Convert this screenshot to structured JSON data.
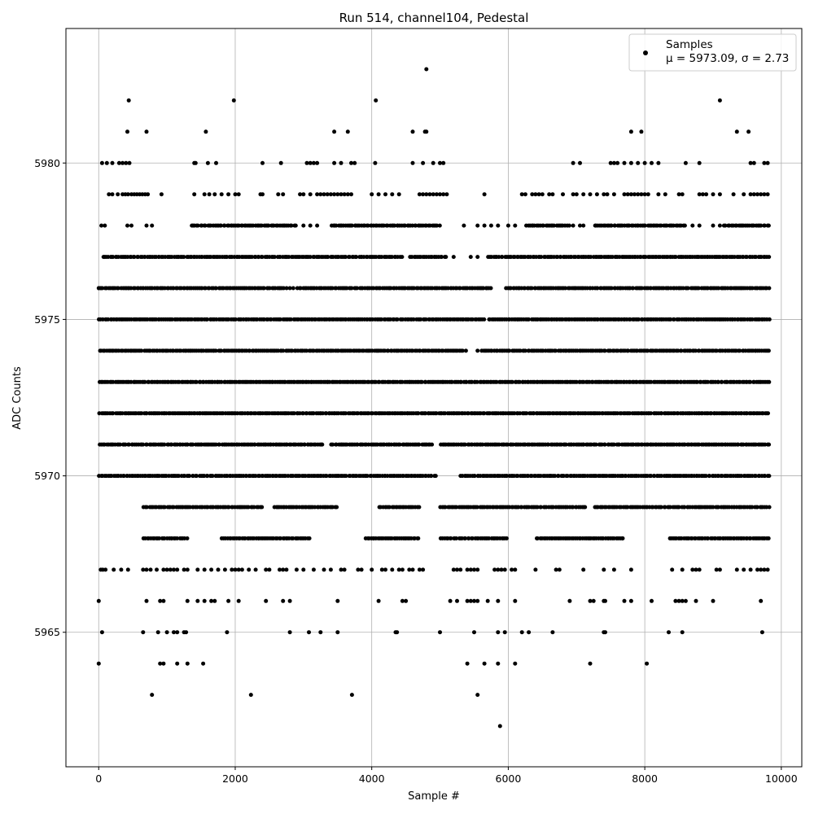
{
  "chart_data": {
    "type": "scatter",
    "title": "Run 514, channel104, Pedestal",
    "xlabel": "Sample #",
    "ylabel": "ADC Counts",
    "xlim": [
      -480,
      10300
    ],
    "ylim": [
      5960.7,
      5984.3
    ],
    "xticks": [
      0,
      2000,
      4000,
      6000,
      8000,
      10000
    ],
    "yticks": [
      5965,
      5970,
      5975,
      5980
    ],
    "grid": true,
    "legend": {
      "position": "top-right",
      "label": "Samples",
      "stats": "μ = 5973.09, σ = 2.73"
    },
    "series": [
      {
        "name": "Samples",
        "color": "#000000",
        "n_samples": 9830,
        "bands": [
          {
            "y": 5976,
            "segments": [
              [
                0,
                2760
              ],
              [
                2900,
                5760
              ],
              [
                5950,
                9830
              ]
            ]
          },
          {
            "y": 5975,
            "segments": [
              [
                0,
                5650
              ],
              [
                5700,
                9830
              ]
            ]
          },
          {
            "y": 5974,
            "segments": [
              [
                0,
                5350
              ],
              [
                5600,
                9830
              ]
            ]
          },
          {
            "y": 5973,
            "segments": [
              [
                0,
                9830
              ]
            ]
          },
          {
            "y": 5972,
            "segments": [
              [
                0,
                9830
              ]
            ]
          },
          {
            "y": 5971,
            "segments": [
              [
                0,
                3300
              ],
              [
                3400,
                4900
              ],
              [
                5000,
                9830
              ]
            ]
          },
          {
            "y": 5970,
            "segments": [
              [
                0,
                4950
              ],
              [
                5300,
                9830
              ]
            ]
          },
          {
            "y": 5977,
            "segments": [
              [
                50,
                4450
              ],
              [
                4560,
                5100
              ],
              [
                5700,
                9830
              ]
            ]
          },
          {
            "y": 5969,
            "segments": [
              [
                650,
                2400
              ],
              [
                2560,
                3500
              ],
              [
                4100,
                4700
              ],
              [
                5000,
                7150
              ],
              [
                7250,
                9830
              ]
            ]
          },
          {
            "y": 5978,
            "segments": [
              [
                1350,
                2900
              ],
              [
                3400,
                5000
              ],
              [
                6250,
                6900
              ],
              [
                7250,
                8600
              ],
              [
                9150,
                9830
              ]
            ]
          },
          {
            "y": 5968,
            "segments": [
              [
                650,
                1300
              ],
              [
                1800,
                3100
              ],
              [
                3900,
                4700
              ],
              [
                5000,
                6000
              ],
              [
                6400,
                7700
              ],
              [
                8350,
                9830
              ]
            ]
          }
        ],
        "sparse": [
          {
            "y": 5976,
            "x": [
              0,
              30,
              2800,
              2850,
              5600,
              5680
            ]
          },
          {
            "y": 5974,
            "x": [
              5380,
              5550
            ]
          },
          {
            "y": 5977,
            "x": [
              5200,
              5450,
              5550
            ]
          },
          {
            "y": 5978,
            "x": [
              40,
              90,
              420,
              480,
              700,
              780,
              3000,
              3100,
              3200,
              5350,
              5550,
              5650,
              5750,
              5850,
              6000,
              6100,
              6950,
              7050,
              7100,
              8700,
              8800,
              9000,
              9100
            ]
          },
          {
            "y": 5979,
            "x": [
              150,
              200,
              280,
              350,
              390,
              430,
              480,
              520,
              560,
              600,
              640,
              680,
              720,
              920,
              1400,
              1550,
              1620,
              1700,
              1800,
              1900,
              2000,
              2050,
              2370,
              2400,
              2630,
              2700,
              2950,
              3000,
              3100,
              3200,
              3250,
              3300,
              3350,
              3400,
              3450,
              3500,
              3550,
              3600,
              3650,
              3700,
              4000,
              4100,
              4200,
              4300,
              4400,
              4700,
              4750,
              4800,
              4850,
              4900,
              4950,
              5000,
              5050,
              5100,
              5650,
              6200,
              6250,
              6350,
              6400,
              6450,
              6500,
              6600,
              6650,
              6800,
              6950,
              7000,
              7100,
              7200,
              7300,
              7400,
              7450,
              7550,
              7700,
              7750,
              7800,
              7850,
              7900,
              7950,
              8000,
              8050,
              8200,
              8300,
              8500,
              8550,
              8800,
              8850,
              8900,
              9000,
              9100,
              9300,
              9450,
              9550,
              9600,
              9650,
              9700,
              9750,
              9800
            ]
          },
          {
            "y": 5980,
            "x": [
              50,
              120,
              200,
              300,
              350,
              400,
              450,
              1400,
              1420,
              1600,
              1720,
              2400,
              2670,
              3050,
              3100,
              3150,
              3200,
              3450,
              3550,
              3700,
              3750,
              4050,
              4600,
              4750,
              4900,
              5000,
              5050,
              6950,
              7050,
              7500,
              7550,
              7600,
              7700,
              7800,
              7900,
              8000,
              8100,
              8200,
              8600,
              8800,
              9550,
              9600,
              9750,
              9800
            ]
          },
          {
            "y": 5981,
            "x": [
              420,
              700,
              1570,
              3450,
              3650,
              4600,
              4780,
              4800,
              7800,
              7950,
              9350,
              9520
            ]
          },
          {
            "y": 5982,
            "x": [
              440,
              1980,
              4060,
              9100
            ]
          },
          {
            "y": 5983,
            "x": [
              4800
            ]
          },
          {
            "y": 5967,
            "x": [
              30,
              60,
              100,
              220,
              330,
              430,
              650,
              700,
              760,
              850,
              950,
              1000,
              1050,
              1100,
              1150,
              1250,
              1300,
              1450,
              1550,
              1650,
              1750,
              1850,
              1950,
              2000,
              2050,
              2100,
              2200,
              2300,
              2450,
              2500,
              2650,
              2700,
              2750,
              2900,
              3000,
              3150,
              3300,
              3400,
              3550,
              3600,
              3800,
              3850,
              4000,
              4150,
              4200,
              4300,
              4400,
              4450,
              4550,
              4600,
              4700,
              4750,
              5200,
              5250,
              5300,
              5400,
              5450,
              5500,
              5550,
              5800,
              5850,
              5900,
              5950,
              6050,
              6100,
              6400,
              6700,
              6750,
              7100,
              7400,
              7550,
              7800,
              8400,
              8550,
              8700,
              8750,
              8800,
              9050,
              9100,
              9350,
              9450,
              9550,
              9650,
              9700,
              9750,
              9800
            ]
          },
          {
            "y": 5966,
            "x": [
              0,
              700,
              900,
              950,
              1300,
              1450,
              1550,
              1650,
              1700,
              1900,
              2050,
              2450,
              2700,
              2800,
              3500,
              4100,
              4450,
              4500,
              5150,
              5250,
              5400,
              5450,
              5500,
              5550,
              5700,
              5850,
              6100,
              6900,
              7200,
              7250,
              7400,
              7420,
              7700,
              7800,
              8100,
              8450,
              8500,
              8550,
              8600,
              8750,
              9000,
              9700
            ]
          },
          {
            "y": 5965,
            "x": [
              50,
              650,
              870,
              1000,
              1100,
              1150,
              1250,
              1280,
              1880,
              2800,
              3080,
              3250,
              3500,
              4350,
              4370,
              5000,
              5500,
              5850,
              5950,
              6200,
              6300,
              6650,
              7400,
              7420,
              8350,
              8550,
              9720
            ]
          },
          {
            "y": 5964,
            "x": [
              0,
              900,
              950,
              1150,
              1300,
              1530,
              5400,
              5650,
              5850,
              6100,
              7200,
              8030
            ]
          },
          {
            "y": 5963,
            "x": [
              780,
              2230,
              3710,
              5550
            ]
          },
          {
            "y": 5962,
            "x": [
              5880
            ]
          }
        ]
      }
    ]
  }
}
